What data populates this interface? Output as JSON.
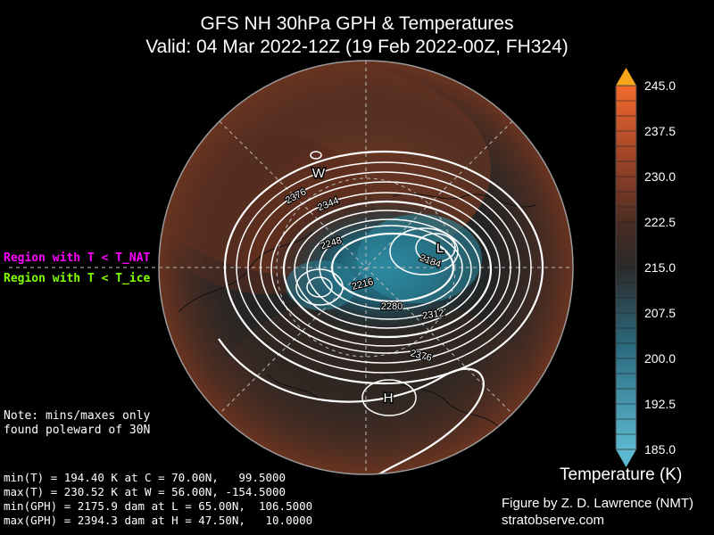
{
  "title": {
    "line1": "GFS NH 30hPa GPH & Temperatures",
    "line2": "Valid: 04 Mar 2022-12Z  (19 Feb 2022-00Z, FH324)"
  },
  "legend": {
    "nat": {
      "label": "Region with T < T_NAT",
      "color": "#ff00ff"
    },
    "ice": {
      "label": "Region with T < T_ice",
      "color": "#7fff00"
    }
  },
  "note": [
    "Note: mins/maxes only",
    "found poleward of 30N"
  ],
  "stats": [
    "min(T) = 194.40 K at C = 70.00N,   99.5000",
    "max(T) = 230.52 K at W = 56.00N, -154.5000",
    "min(GPH) = 2175.9 dam at L = 65.00N,  106.5000",
    "max(GPH) = 2394.3 dam at H = 47.50N,   10.0000"
  ],
  "map": {
    "markers": [
      {
        "id": "W",
        "label": "W"
      },
      {
        "id": "L",
        "label": "L"
      },
      {
        "id": "H",
        "label": "H"
      }
    ],
    "contour_labels": [
      {
        "id": "c2376a",
        "text": "2376"
      },
      {
        "id": "c2344",
        "text": "2344"
      },
      {
        "id": "c2248",
        "text": "2248"
      },
      {
        "id": "c2184",
        "text": "2184"
      },
      {
        "id": "c2216",
        "text": "2216"
      },
      {
        "id": "c2280",
        "text": "2280"
      },
      {
        "id": "c2312",
        "text": "2312"
      },
      {
        "id": "c2376b",
        "text": "2376"
      }
    ]
  },
  "colorbar": {
    "title": "Temperature (K)",
    "range": [
      185.0,
      245.0
    ],
    "ticks": [
      "245.0",
      "237.5",
      "230.0",
      "222.5",
      "215.0",
      "207.5",
      "200.0",
      "192.5",
      "185.0"
    ],
    "colors": {
      "cold": "#5bb8cf",
      "neutral": "#2a2a2a",
      "warm": "#c2512e",
      "hottest": "#f7a51a"
    }
  },
  "credit": {
    "line1": "Figure by Z. D. Lawrence (NMT)",
    "line2": "stratobserve.com"
  }
}
